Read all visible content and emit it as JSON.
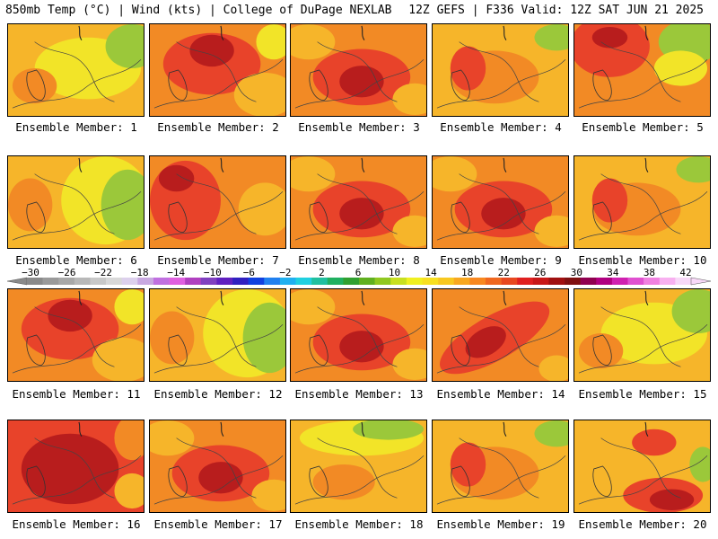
{
  "header": {
    "left": "850mb Temp (°C) | Wind (kts) | College of DuPage NEXLAB",
    "right": "12Z GEFS | F336 Valid: 12Z SAT JUN 21 2025"
  },
  "colorbar": {
    "labels": [
      "-30",
      "-26",
      "-22",
      "-18",
      "-14",
      "-10",
      "-6",
      "-2",
      "2",
      "6",
      "10",
      "14",
      "18",
      "22",
      "26",
      "30",
      "34",
      "38",
      "42"
    ],
    "colors": [
      "#8a8a8a",
      "#9a9a9a",
      "#a8a8a8",
      "#b8b8b8",
      "#c8c8c8",
      "#d8d8d8",
      "#dcd0ec",
      "#c8a8e0",
      "#c070e0",
      "#e060e0",
      "#b040c0",
      "#8040c0",
      "#6020c0",
      "#3020c0",
      "#1040e0",
      "#2080f0",
      "#20b0f0",
      "#20d0e0",
      "#20c0a0",
      "#20b060",
      "#30a030",
      "#60b020",
      "#90c820",
      "#c8e020",
      "#f0f020",
      "#f8e020",
      "#f8c820",
      "#f8a820",
      "#f88820",
      "#f06820",
      "#e84820",
      "#e02020",
      "#c81818",
      "#a01010",
      "#801010",
      "#900050",
      "#b00080",
      "#d020b0",
      "#e050d0",
      "#f080e0",
      "#f8b0f0",
      "#f8d8f8"
    ]
  },
  "members": [
    {
      "caption": "Ensemble Member: 1",
      "theme": "warm-yellow"
    },
    {
      "caption": "Ensemble Member: 2",
      "theme": "hot-north"
    },
    {
      "caption": "Ensemble Member: 3",
      "theme": "hot-center"
    },
    {
      "caption": "Ensemble Member: 4",
      "theme": "warm-orange"
    },
    {
      "caption": "Ensemble Member: 5",
      "theme": "hot-northwest"
    },
    {
      "caption": "Ensemble Member: 6",
      "theme": "cool-east"
    },
    {
      "caption": "Ensemble Member: 7",
      "theme": "hot-west"
    },
    {
      "caption": "Ensemble Member: 8",
      "theme": "hot-center"
    },
    {
      "caption": "Ensemble Member: 9",
      "theme": "hot-center"
    },
    {
      "caption": "Ensemble Member: 10",
      "theme": "warm-orange"
    },
    {
      "caption": "Ensemble Member: 11",
      "theme": "hot-north"
    },
    {
      "caption": "Ensemble Member: 12",
      "theme": "cool-east"
    },
    {
      "caption": "Ensemble Member: 13",
      "theme": "hot-center"
    },
    {
      "caption": "Ensemble Member: 14",
      "theme": "hot-diagonal"
    },
    {
      "caption": "Ensemble Member: 15",
      "theme": "warm-yellow"
    },
    {
      "caption": "Ensemble Member: 16",
      "theme": "very-hot"
    },
    {
      "caption": "Ensemble Member: 17",
      "theme": "hot-center"
    },
    {
      "caption": "Ensemble Member: 18",
      "theme": "cool-north"
    },
    {
      "caption": "Ensemble Member: 19",
      "theme": "warm-orange"
    },
    {
      "caption": "Ensemble Member: 20",
      "theme": "hot-south"
    }
  ],
  "colors": {
    "green": "#9bc83a",
    "yellow": "#f2e428",
    "lightorange": "#f6b52a",
    "orange": "#f28a25",
    "red": "#e8432a",
    "darkred": "#b81d1d"
  }
}
